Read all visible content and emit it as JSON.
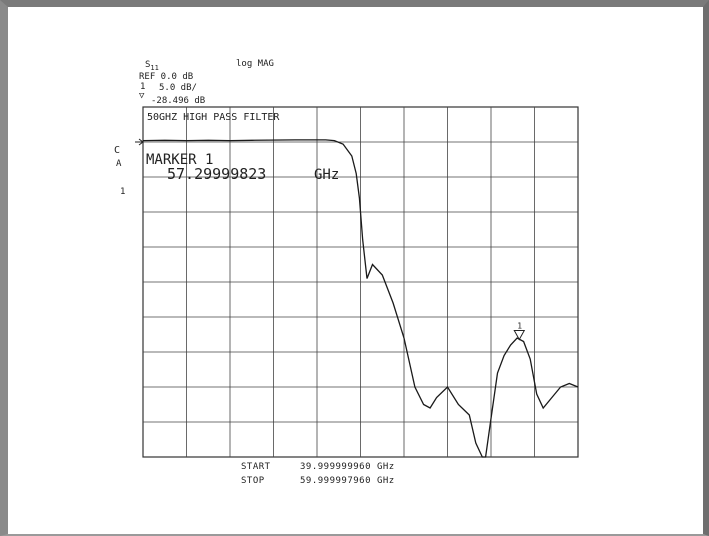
{
  "instrument": {
    "param": "S",
    "param_sub": "11",
    "format": "log MAG",
    "ref": "REF 0.0 dB",
    "scale_label": "5.0 dB/",
    "marker_value": "-28.496 dB",
    "sym1": "1",
    "sym2": "▽",
    "side_c": "C",
    "side_a": "A",
    "ref_marker": "1"
  },
  "plot": {
    "title": "50GHZ HIGH PASS FILTER",
    "marker_label": "MARKER 1",
    "marker_freq": "57.29999823",
    "marker_unit": "GHz",
    "marker_glyph": "1"
  },
  "footer": {
    "start_label": "START",
    "start_value": "39.999999960 GHz",
    "stop_label": "STOP",
    "stop_value": "59.999997960 GHz"
  },
  "chart_data": {
    "type": "line",
    "title": "50GHZ HIGH PASS FILTER",
    "xlabel": "",
    "ylabel": "",
    "x_unit": "GHz",
    "y_unit": "dB",
    "xlim": [
      39.99999996,
      59.99999796
    ],
    "ylim": [
      -45,
      5
    ],
    "reference_level_db": 0,
    "scale_db_per_div": 5,
    "grid": true,
    "marker": {
      "x": 57.29999823,
      "y": -28.496
    },
    "series": [
      {
        "x": [
          40.0,
          41.0,
          42.0,
          43.0,
          44.0,
          45.0,
          47.0,
          48.0,
          48.4,
          48.8,
          49.2,
          49.6,
          49.8,
          49.95,
          50.1,
          50.3,
          50.55,
          51.0,
          51.5,
          52.0,
          52.5,
          52.9,
          53.2,
          53.5,
          54.0,
          54.5,
          55.0,
          55.3,
          55.6,
          55.75,
          56.0,
          56.3,
          56.6,
          56.9,
          57.2,
          57.5,
          57.8,
          58.1,
          58.4,
          58.8,
          59.2,
          59.6,
          60.0
        ],
        "y": [
          0.2,
          0.25,
          0.2,
          0.25,
          0.2,
          0.25,
          0.3,
          0.3,
          0.3,
          0.2,
          -0.3,
          -2.0,
          -4.5,
          -8.0,
          -14.0,
          -19.5,
          -17.5,
          -19.0,
          -23.0,
          -28.0,
          -35.0,
          -37.5,
          -38.0,
          -36.5,
          -35.0,
          -37.5,
          -39.0,
          -43.0,
          -45.0,
          -45.0,
          -39.5,
          -33.0,
          -30.5,
          -29.0,
          -28.0,
          -28.5,
          -31.0,
          -36.0,
          -38.0,
          -36.5,
          -35.0,
          -34.5,
          -35.0
        ]
      }
    ]
  }
}
